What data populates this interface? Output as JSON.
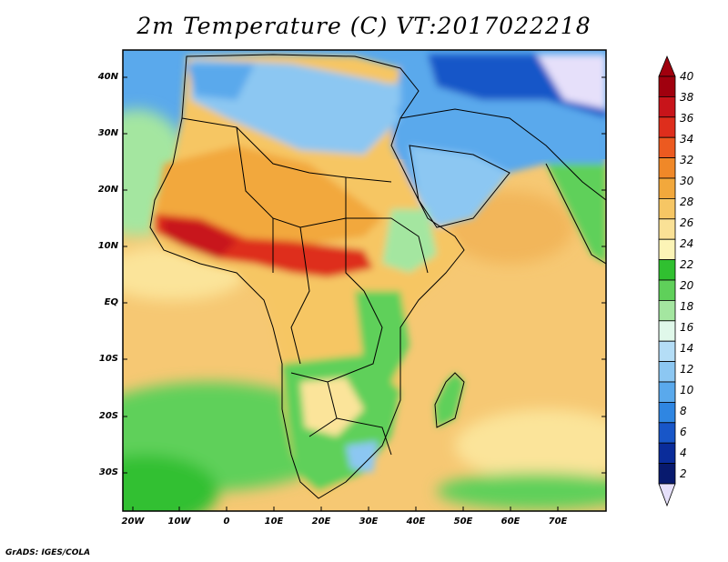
{
  "title": "2m Temperature (C) VT:2017022218",
  "credit": "GrADS: IGES/COLA",
  "map": {
    "lat_labels": [
      "40N",
      "30N",
      "20N",
      "10N",
      "EQ",
      "10S",
      "20S",
      "30S"
    ],
    "lon_labels": [
      "20W",
      "10W",
      "0",
      "10E",
      "20E",
      "30E",
      "40E",
      "50E",
      "60E",
      "70E"
    ]
  },
  "legend": {
    "labels": [
      "40",
      "38",
      "36",
      "34",
      "32",
      "30",
      "28",
      "26",
      "24",
      "22",
      "20",
      "18",
      "16",
      "14",
      "12",
      "10",
      "8",
      "6",
      "4",
      "2"
    ],
    "colors": [
      "#a0000e",
      "#c8141a",
      "#de2e1c",
      "#ec5a20",
      "#f08828",
      "#f2a83c",
      "#f6c664",
      "#fae196",
      "#fcf4b6",
      "#30c030",
      "#5fd05a",
      "#a4e6a0",
      "#e0f8ea",
      "#b4ddf6",
      "#8cc7f2",
      "#5aa9ec",
      "#2f86e2",
      "#1856c8",
      "#0a2c9a",
      "#081a6e"
    ],
    "top_arrow_color": "#a0000e",
    "bottom_arrow_color": "#e6e0fa"
  },
  "palette": {
    "ocean_warm": "#f6c873",
    "ocean_mild": "#fbe49a",
    "ocean_cool": "#5fd05a",
    "sahara": "#f2a83c",
    "sahel": "#de2e1c",
    "north": "#5aa9ec",
    "cold": "#1856c8",
    "tropics": "#f08828"
  }
}
